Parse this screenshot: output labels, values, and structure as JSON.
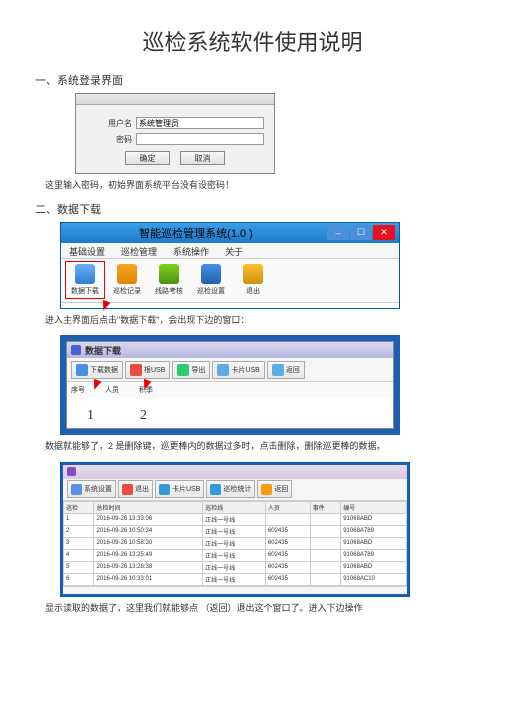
{
  "page_title": "巡检系统软件使用说明",
  "section1": {
    "heading": "一、系统登录界面",
    "text": "这里输入密码，初始界面系统平台没有设密码！"
  },
  "login": {
    "label1": "用户名",
    "value1": "系统管理员",
    "label2": "密码",
    "btn_ok": "确定",
    "btn_cancel": "取消"
  },
  "section2": {
    "heading": "二、数据下载",
    "text1": "进入主界面后点击\"数据下载\"，会出现下边的窗口：",
    "text2": "数据就能够了，2 是删除键，巡更棒内的数据过多时，点击删除，删除巡更棒的数据。",
    "text3": "显示读取的数据了，这里我们就能够点 （返回）退出这个窗口了。进入下边操作"
  },
  "main_win": {
    "title": "智能巡检管理系统(1.0 )",
    "menu": [
      "基础设置",
      "巡检管理",
      "系统操作",
      "关于"
    ],
    "toolbar": [
      "数据下载",
      "巡检记录",
      "线路考核",
      "巡检设置",
      "退出"
    ]
  },
  "dl_win": {
    "title": "数据下载",
    "toolbar": [
      "下载数据",
      "根USB",
      "导出",
      "卡片USB",
      "返回"
    ],
    "filter": [
      "序号",
      "",
      "",
      "人员",
      "",
      "积季"
    ],
    "annot": [
      "1",
      "2"
    ]
  },
  "data_win": {
    "toolbar": [
      "系统设置",
      "退出",
      "卡片USB",
      "巡检统计",
      "返回"
    ],
    "cols": [
      "巡检",
      "总检时间",
      "巡检线",
      "人员",
      "事件",
      "编号"
    ],
    "rows": [
      [
        "1",
        "2016-09-26 13:33:06",
        "正线一号线",
        "",
        "",
        "91068ABD"
      ],
      [
        "2",
        "2016-09-26 10:50:34",
        "正线一号线",
        "602435",
        "",
        "91068A789"
      ],
      [
        "3",
        "2016-09-26 10:58:30",
        "正线一号线",
        "602435",
        "",
        "91068ABD"
      ],
      [
        "4",
        "2016-09-26 13:25:49",
        "正线一号线",
        "602435",
        "",
        "91068A789"
      ],
      [
        "5",
        "2016-09-26 13:28:38",
        "正线一号线",
        "602435",
        "",
        "91068ABD"
      ],
      [
        "6",
        "2016-09-26 10:33:01",
        "正线一号线",
        "602435",
        "",
        "91068AC10"
      ]
    ]
  },
  "colors": {
    "accent": "#1e7acc",
    "desktop": "#1e5fb3",
    "close": "#e81123",
    "arrow": "#e00"
  }
}
